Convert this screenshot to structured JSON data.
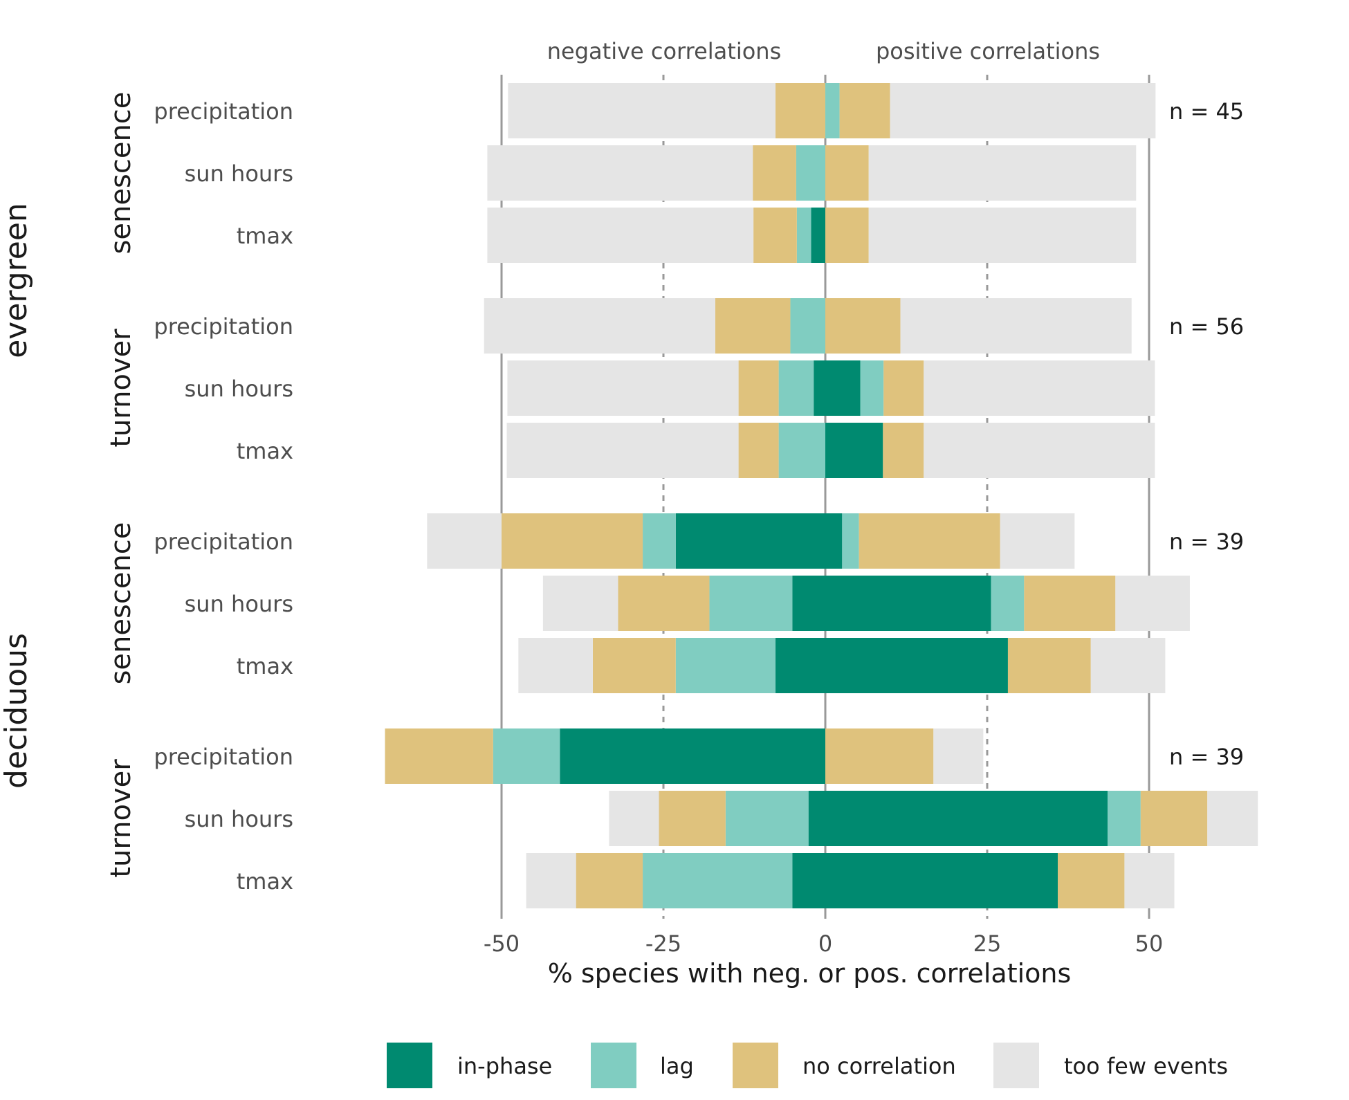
{
  "chart_data": {
    "type": "bar",
    "orientation": "horizontal",
    "stacked": "diverging",
    "xlabel": "% species with neg. or pos. correlations",
    "xticks": [
      -50,
      -25,
      0,
      25,
      50
    ],
    "xlim": [
      -68,
      67
    ],
    "header_left": "negative correlations",
    "header_right": "positive correlations",
    "legend_position": "bottom",
    "series_colors": {
      "in-phase": "#008a70",
      "lag": "#80cdc1",
      "no correlation": "#dfc27d",
      "too few events": "#e5e5e5"
    },
    "legend": [
      {
        "key": "in-phase",
        "label": "in-phase",
        "color": "#008a70"
      },
      {
        "key": "lag",
        "label": "lag",
        "color": "#80cdc1"
      },
      {
        "key": "no correlation",
        "label": "no correlation",
        "color": "#dfc27d"
      },
      {
        "key": "too few events",
        "label": "too few events",
        "color": "#e5e5e5"
      }
    ],
    "groups": [
      {
        "type": "evergreen",
        "panels": [
          {
            "event": "senescence",
            "n_text": "n =  45",
            "rows": [
              {
                "variable": "precipitation",
                "negative": {
                  "in-phase": 0,
                  "lag": 0,
                  "no correlation": 7.7,
                  "too few events": 41.3
                },
                "positive": {
                  "in-phase": 0,
                  "lag": 2.2,
                  "no correlation": 7.8,
                  "too few events": 41.0
                }
              },
              {
                "variable": "sun hours",
                "negative": {
                  "in-phase": 0,
                  "lag": 4.5,
                  "no correlation": 6.7,
                  "too few events": 41.0
                },
                "positive": {
                  "in-phase": 0,
                  "lag": 0,
                  "no correlation": 6.7,
                  "too few events": 41.3
                }
              },
              {
                "variable": "tmax",
                "negative": {
                  "in-phase": 2.2,
                  "lag": 2.2,
                  "no correlation": 6.7,
                  "too few events": 41.1
                },
                "positive": {
                  "in-phase": 0,
                  "lag": 0,
                  "no correlation": 6.7,
                  "too few events": 41.3
                }
              }
            ]
          },
          {
            "event": "turnover",
            "n_text": "n =  56",
            "rows": [
              {
                "variable": "precipitation",
                "negative": {
                  "in-phase": 0,
                  "lag": 5.4,
                  "no correlation": 11.6,
                  "too few events": 35.7
                },
                "positive": {
                  "in-phase": 0,
                  "lag": 0,
                  "no correlation": 11.6,
                  "too few events": 35.7
                }
              },
              {
                "variable": "sun hours",
                "negative": {
                  "in-phase": 1.8,
                  "lag": 5.4,
                  "no correlation": 6.2,
                  "too few events": 35.7
                },
                "positive": {
                  "in-phase": 5.4,
                  "lag": 3.6,
                  "no correlation": 6.2,
                  "too few events": 35.7
                }
              },
              {
                "variable": "tmax",
                "negative": {
                  "in-phase": 0,
                  "lag": 7.2,
                  "no correlation": 6.2,
                  "too few events": 35.8
                },
                "positive": {
                  "in-phase": 8.9,
                  "lag": 0,
                  "no correlation": 6.3,
                  "too few events": 35.7
                }
              }
            ]
          }
        ]
      },
      {
        "type": "deciduous",
        "panels": [
          {
            "event": "senescence",
            "n_text": "n =  39",
            "rows": [
              {
                "variable": "precipitation",
                "negative": {
                  "in-phase": 23.1,
                  "lag": 5.1,
                  "no correlation": 21.8,
                  "too few events": 11.5
                },
                "positive": {
                  "in-phase": 2.6,
                  "lag": 2.6,
                  "no correlation": 21.8,
                  "too few events": 11.5
                }
              },
              {
                "variable": "sun hours",
                "negative": {
                  "in-phase": 5.1,
                  "lag": 12.8,
                  "no correlation": 14.1,
                  "too few events": 11.6
                },
                "positive": {
                  "in-phase": 25.6,
                  "lag": 5.1,
                  "no correlation": 14.1,
                  "too few events": 11.5
                }
              },
              {
                "variable": "tmax",
                "negative": {
                  "in-phase": 7.7,
                  "lag": 15.4,
                  "no correlation": 12.8,
                  "too few events": 11.5
                },
                "positive": {
                  "in-phase": 28.2,
                  "lag": 0,
                  "no correlation": 12.8,
                  "too few events": 11.5
                }
              }
            ]
          },
          {
            "event": "turnover",
            "n_text": "n =  39",
            "rows": [
              {
                "variable": "precipitation",
                "negative": {
                  "in-phase": 41.0,
                  "lag": 10.3,
                  "no correlation": 16.7,
                  "too few events": 0
                },
                "positive": {
                  "in-phase": 0,
                  "lag": 0,
                  "no correlation": 16.7,
                  "too few events": 7.7
                }
              },
              {
                "variable": "sun hours",
                "negative": {
                  "in-phase": 2.6,
                  "lag": 12.8,
                  "no correlation": 10.3,
                  "too few events": 7.7
                },
                "positive": {
                  "in-phase": 43.6,
                  "lag": 5.1,
                  "no correlation": 10.3,
                  "too few events": 7.8
                }
              },
              {
                "variable": "tmax",
                "negative": {
                  "in-phase": 5.1,
                  "lag": 23.1,
                  "no correlation": 10.3,
                  "too few events": 7.7
                },
                "positive": {
                  "in-phase": 35.9,
                  "lag": 0,
                  "no correlation": 10.3,
                  "too few events": 7.7
                }
              }
            ]
          }
        ]
      }
    ]
  }
}
